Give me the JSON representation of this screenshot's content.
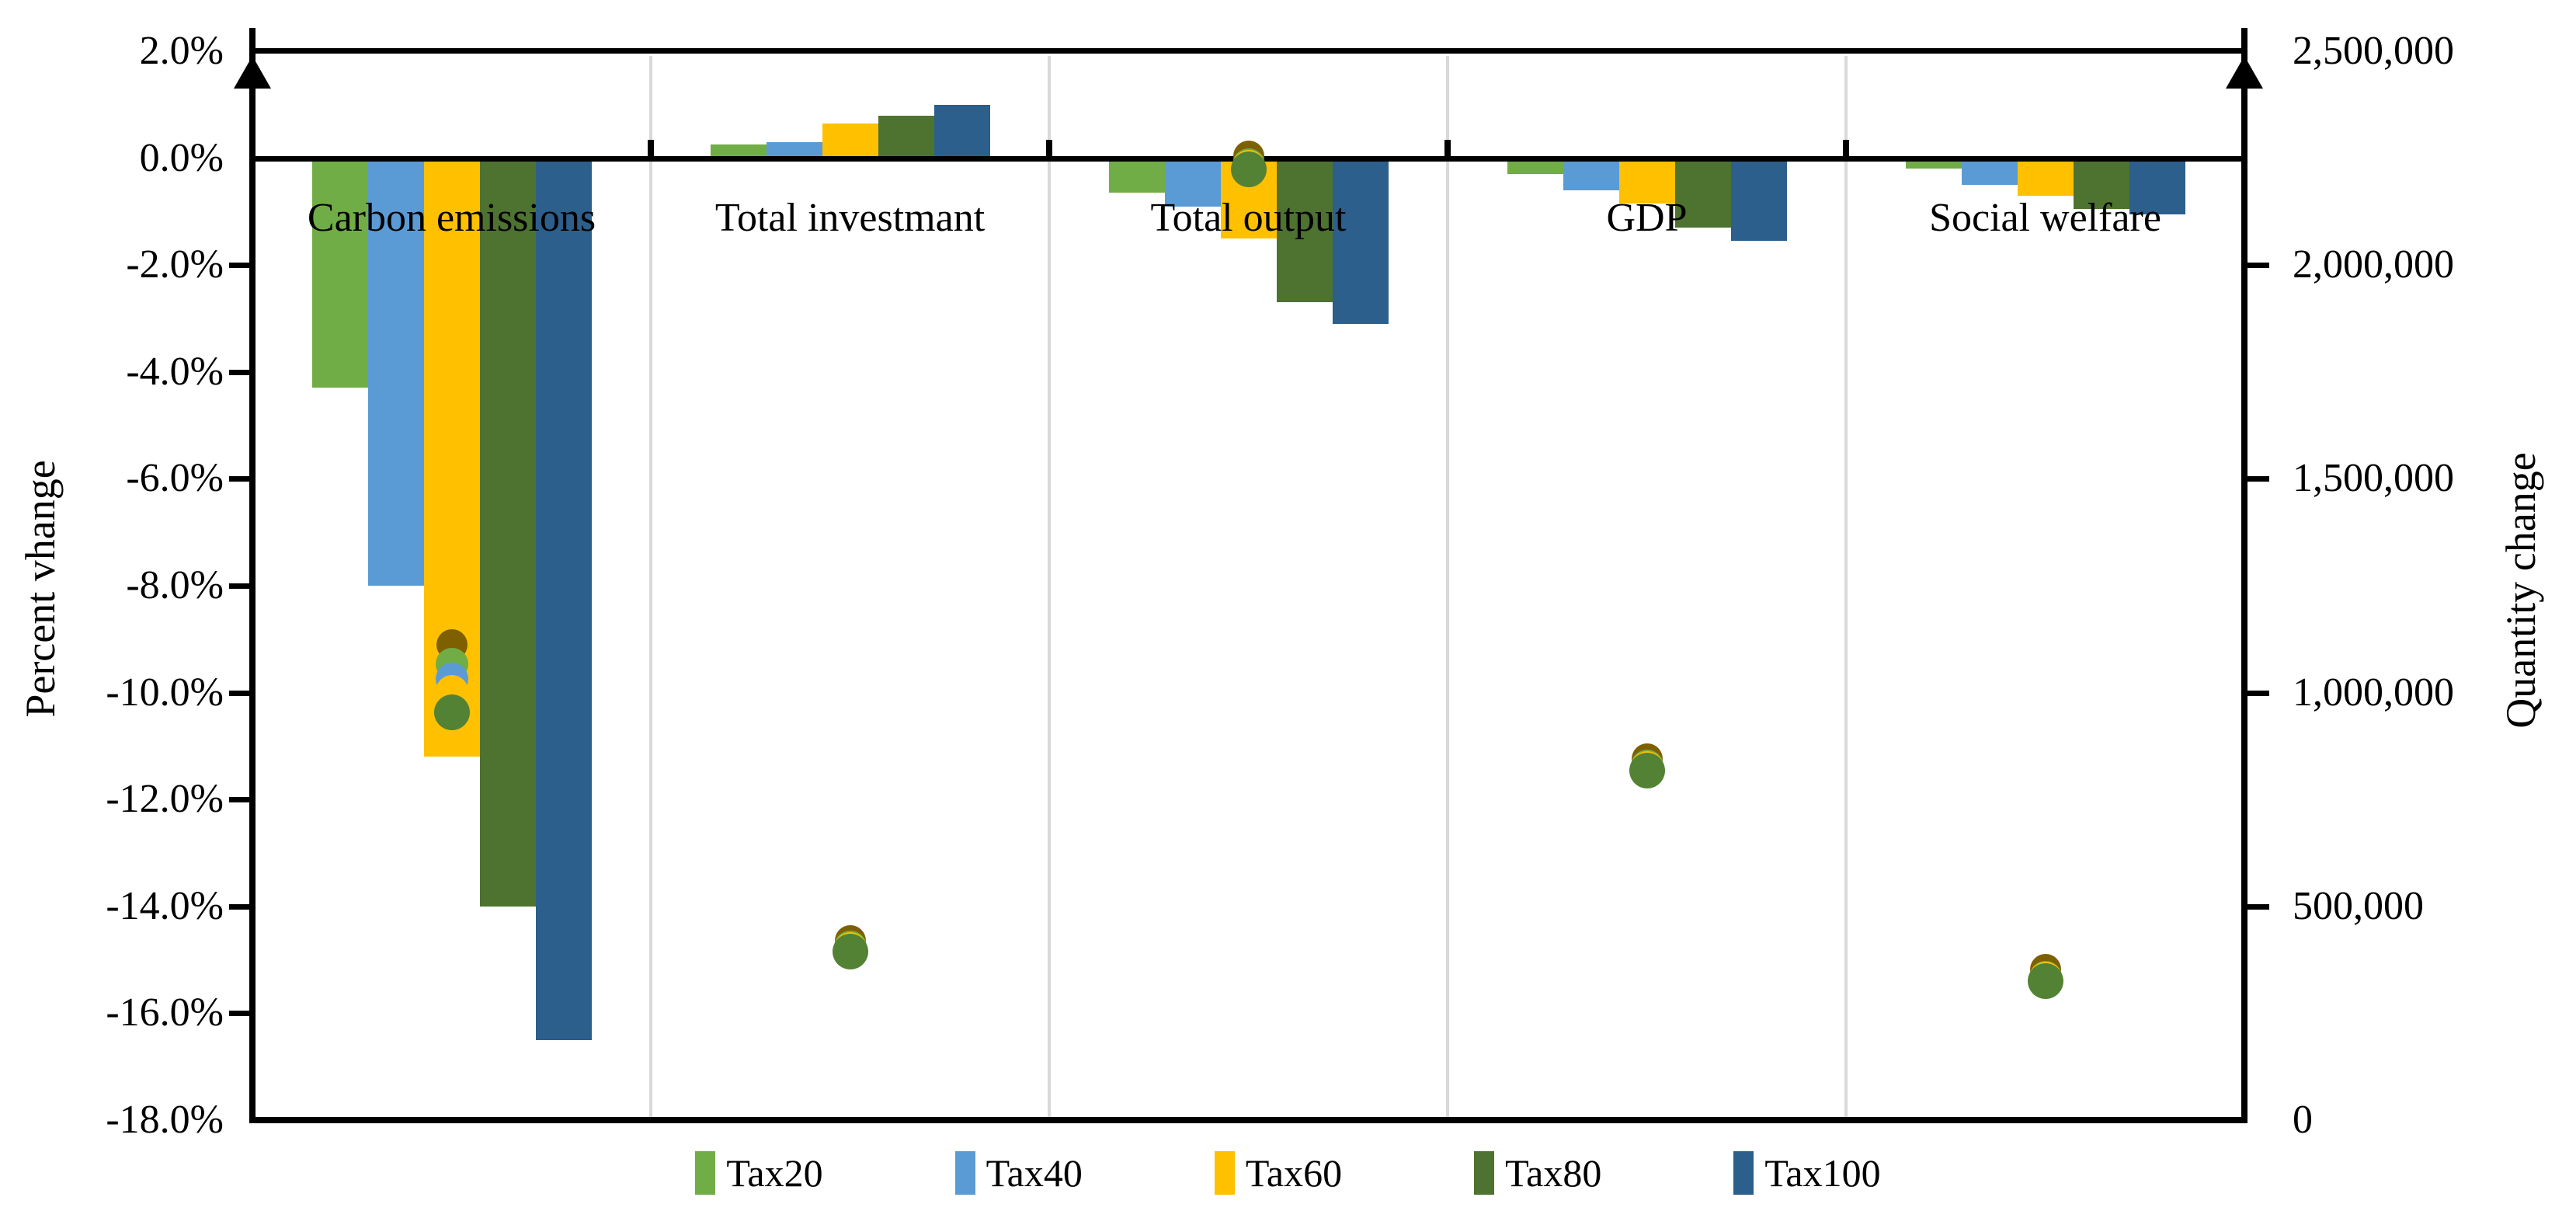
{
  "chart_data": {
    "type": "bar",
    "subtype": "grouped-bar-with-scatter-markers-dual-axis",
    "categories": [
      "Carbon emissions",
      "Total investmant",
      "Total output",
      "GDP",
      "Social welfare"
    ],
    "bar_series": [
      {
        "name": "Tax20",
        "color": "#70AD47",
        "axis": "left",
        "values_percent": [
          -4.3,
          0.25,
          -0.65,
          -0.3,
          -0.2
        ]
      },
      {
        "name": "Tax40",
        "color": "#5B9BD5",
        "axis": "left",
        "values_percent": [
          -8.0,
          0.3,
          -0.9,
          -0.6,
          -0.5
        ]
      },
      {
        "name": "Tax60",
        "color": "#FFC000",
        "axis": "left",
        "values_percent": [
          -11.2,
          0.65,
          -1.5,
          -0.85,
          -0.7
        ]
      },
      {
        "name": "Tax80",
        "color": "#4E7230",
        "axis": "left",
        "values_percent": [
          -14.0,
          0.8,
          -2.7,
          -1.3,
          -0.95
        ]
      },
      {
        "name": "Tax100",
        "color": "#2C5F8C",
        "axis": "left",
        "values_percent": [
          -16.5,
          1.0,
          -3.1,
          -1.55,
          -1.05
        ]
      }
    ],
    "marker_series": [
      {
        "marker_color_name": "dark-olive",
        "color": "#7F6000",
        "axis": "right",
        "shape": "circle",
        "size": 40,
        "values_quantity": [
          1112000,
          420000,
          2255000,
          845000,
          352000
        ]
      },
      {
        "marker_color_name": "green",
        "color": "#70AD47",
        "axis": "right",
        "shape": "circle",
        "size": 42,
        "values_quantity": [
          1066000,
          405000,
          2235000,
          828000,
          335000
        ]
      },
      {
        "marker_color_name": "light-blue",
        "color": "#5B9BD5",
        "axis": "right",
        "shape": "circle",
        "size": 42,
        "values_quantity": [
          1032000,
          400000,
          2228000,
          822000,
          329000
        ]
      },
      {
        "marker_color_name": "yellow",
        "color": "#FFC000",
        "axis": "right",
        "shape": "circle",
        "size": 42,
        "values_quantity": [
          1003000,
          402000,
          2232000,
          825000,
          332000
        ]
      },
      {
        "marker_color_name": "medium-green",
        "color": "#538235",
        "axis": "right",
        "shape": "circle",
        "size": 46,
        "values_quantity": [
          954000,
          394000,
          2224000,
          818000,
          325000
        ]
      }
    ],
    "left_axis": {
      "title": "Percent vhange",
      "max": 2.0,
      "min": -18.0,
      "tick_step": 2.0,
      "tick_labels": [
        "2.0%",
        "0.0%",
        "-2.0%",
        "-4.0%",
        "-6.0%",
        "-8.0%",
        "-10.0%",
        "-12.0%",
        "-14.0%",
        "-16.0%",
        "-18.0%"
      ]
    },
    "right_axis": {
      "title": "Quantity change",
      "max": 2500000,
      "min": 0,
      "tick_step": 500000,
      "tick_labels": [
        "2,500,000",
        "2,000,000",
        "1,500,000",
        "1,000,000",
        "500,000",
        "0"
      ]
    },
    "legend": {
      "position": "bottom",
      "entries": [
        {
          "label": "Tax20",
          "color": "#70AD47"
        },
        {
          "label": "Tax40",
          "color": "#5B9BD5"
        },
        {
          "label": "Tax60",
          "color": "#FFC000"
        },
        {
          "label": "Tax80",
          "color": "#4E7230"
        },
        {
          "label": "Tax100",
          "color": "#2C5F8C"
        }
      ]
    },
    "layout_hints": {
      "zero_line": true,
      "category_separators_color": "#D9D9D9",
      "axis_color": "#000000",
      "axis_arrows": "up-arrow on both vertical axes",
      "gridlines": false
    }
  }
}
